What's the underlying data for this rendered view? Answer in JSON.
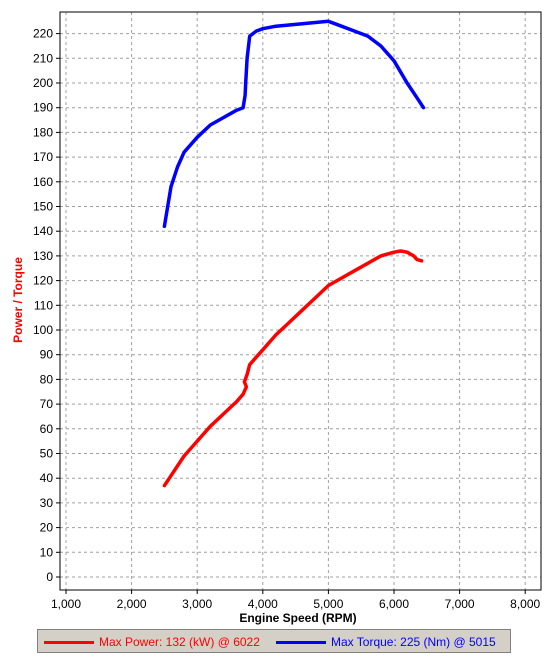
{
  "chart_data": {
    "type": "line",
    "xlabel": "Engine Speed (RPM)",
    "ylabel": "Power / Torque",
    "xlim": [
      1000,
      8000
    ],
    "ylim": [
      0,
      225
    ],
    "x_ticks": [
      "1,000",
      "2,000",
      "3,000",
      "4,000",
      "5,000",
      "6,000",
      "7,000",
      "8,000"
    ],
    "y_ticks": [
      "0",
      "10",
      "20",
      "30",
      "40",
      "50",
      "60",
      "70",
      "80",
      "90",
      "100",
      "110",
      "120",
      "130",
      "140",
      "150",
      "160",
      "170",
      "180",
      "190",
      "200",
      "210",
      "220"
    ],
    "grid": true,
    "legend_position": "bottom",
    "series": [
      {
        "name": "Max Power: 132 (kW) @ 6022",
        "color": "#ff0000",
        "x": [
          2500,
          2600,
          2700,
          2800,
          3000,
          3200,
          3400,
          3600,
          3700,
          3750,
          3720,
          3760,
          3800,
          3900,
          4000,
          4200,
          4400,
          4600,
          4800,
          5000,
          5200,
          5400,
          5600,
          5800,
          6000,
          6100,
          6200,
          6300,
          6350,
          6420
        ],
        "values": [
          37,
          41,
          45,
          49,
          55,
          61,
          66,
          71,
          74,
          77,
          79,
          82,
          86,
          89,
          92,
          98,
          103,
          108,
          113,
          118,
          121,
          124,
          127,
          130,
          131.5,
          132,
          131.5,
          130,
          128.5,
          128
        ]
      },
      {
        "name": "Max Torque: 225 (Nm) @ 5015",
        "color": "#0000ff",
        "x": [
          2500,
          2550,
          2600,
          2700,
          2800,
          3000,
          3200,
          3400,
          3600,
          3700,
          3730,
          3740,
          3760,
          3800,
          3900,
          4000,
          4200,
          4400,
          4600,
          4800,
          5000,
          5200,
          5400,
          5600,
          5800,
          6000,
          6200,
          6350,
          6450
        ],
        "values": [
          142,
          150,
          158,
          166,
          172,
          178,
          183,
          186,
          189,
          190,
          195,
          200,
          210,
          219,
          221,
          222,
          223,
          223.5,
          224,
          224.5,
          225,
          223,
          221,
          219,
          215,
          209,
          200,
          194,
          190
        ]
      }
    ]
  }
}
